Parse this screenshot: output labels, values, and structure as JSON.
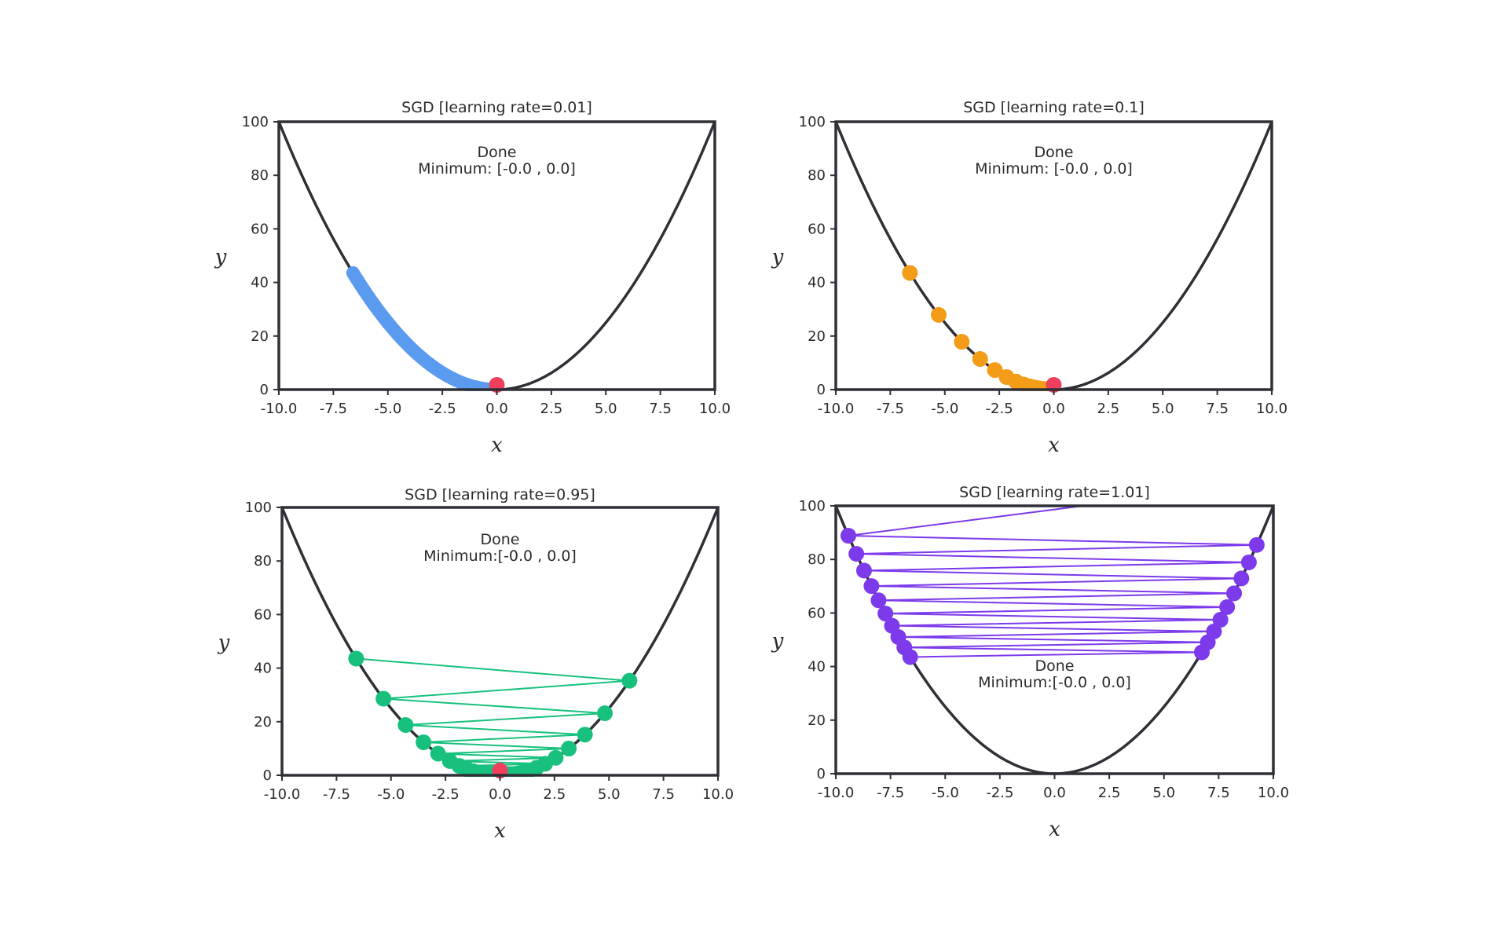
{
  "chart_data": [
    {
      "type": "line",
      "title": "SGD [learning rate=0.01]",
      "xlabel": "x",
      "ylabel": "y",
      "xlim": [
        -10,
        10
      ],
      "ylim": [
        0,
        100
      ],
      "xticks": [
        "-10.0",
        "-7.5",
        "-5.0",
        "-2.5",
        "0.0",
        "2.5",
        "5.0",
        "7.5",
        "10.0"
      ],
      "yticks": [
        "0",
        "20",
        "40",
        "60",
        "80",
        "100"
      ],
      "curve": "y = x^2",
      "annotation": [
        "Done",
        "Minimum: [-0.0 , 0.0]"
      ],
      "steps": {
        "color": "#5b9bef",
        "style": "thick-path",
        "lr": 0.01,
        "x0": -6.6,
        "n": 400
      },
      "minimum_point": {
        "x": -0.0,
        "y": 0.0,
        "color": "#ef3f5d"
      },
      "grid": false,
      "legend": "none"
    },
    {
      "type": "scatter",
      "title": "SGD [learning rate=0.1]",
      "xlabel": "x",
      "ylabel": "y",
      "xlim": [
        -10,
        10
      ],
      "ylim": [
        0,
        100
      ],
      "xticks": [
        "-10.0",
        "-7.5",
        "-5.0",
        "-2.5",
        "0.0",
        "2.5",
        "5.0",
        "7.5",
        "10.0"
      ],
      "yticks": [
        "0",
        "20",
        "40",
        "60",
        "80",
        "100"
      ],
      "curve": "y = x^2",
      "annotation": [
        "Done",
        "Minimum: [-0.0 , 0.0]"
      ],
      "steps": {
        "color": "#f29c18",
        "style": "markers",
        "lr": 0.1,
        "x0": -6.6,
        "n": 25
      },
      "minimum_point": {
        "x": -0.0,
        "y": 0.0,
        "color": "#ef3f5d"
      },
      "grid": false,
      "legend": "none"
    },
    {
      "type": "line",
      "title": "SGD [learning rate=0.95]",
      "xlabel": "x",
      "ylabel": "y",
      "xlim": [
        -10,
        10
      ],
      "ylim": [
        0,
        100
      ],
      "xticks": [
        "-10.0",
        "-7.5",
        "-5.0",
        "-2.5",
        "0.0",
        "2.5",
        "5.0",
        "7.5",
        "10.0"
      ],
      "yticks": [
        "0",
        "20",
        "40",
        "60",
        "80",
        "100"
      ],
      "curve": "y = x^2",
      "annotation": [
        "Done",
        "Minimum:[-0.0 , 0.0]"
      ],
      "steps": {
        "color": "#17c17d",
        "style": "markers+lines",
        "lr": 0.95,
        "x0": -6.6,
        "n": 40
      },
      "minimum_point": {
        "x": 0.0,
        "y": 0.0,
        "color": "#ef3f5d"
      },
      "grid": false,
      "legend": "none"
    },
    {
      "type": "line",
      "title": "SGD [learning rate=1.01]",
      "xlabel": "x",
      "ylabel": "y",
      "xlim": [
        -10,
        10
      ],
      "ylim": [
        0,
        100
      ],
      "xticks": [
        "-10.0",
        "-7.5",
        "-5.0",
        "-2.5",
        "0.0",
        "2.5",
        "5.0",
        "7.5",
        "10.0"
      ],
      "yticks": [
        "0",
        "20",
        "40",
        "60",
        "80",
        "100"
      ],
      "curve": "y = x^2",
      "annotation": [
        "Done",
        "Minimum:[-0.0 , 0.0]"
      ],
      "steps": {
        "color": "#7c3aeb",
        "style": "markers+lines",
        "lr": 1.01,
        "x0": -6.6,
        "n": 19
      },
      "grid": false,
      "legend": "none"
    }
  ]
}
